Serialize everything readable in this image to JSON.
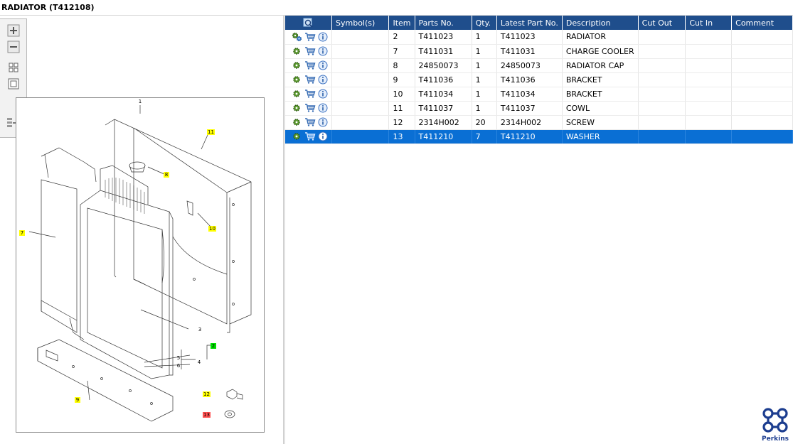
{
  "window": {
    "title": "RADIATOR (T412108)"
  },
  "toolbar": {
    "buttons": [
      {
        "name": "zoom-in-icon"
      },
      {
        "name": "zoom-out-icon"
      },
      {
        "name": "fit-grid-icon"
      },
      {
        "name": "actual-size-icon"
      },
      {
        "name": "export-icon"
      }
    ]
  },
  "diagram": {
    "callouts": [
      {
        "label": "1",
        "style": "p"
      },
      {
        "label": "11",
        "style": "y"
      },
      {
        "label": "8",
        "style": "y"
      },
      {
        "label": "10",
        "style": "y"
      },
      {
        "label": "7",
        "style": "y"
      },
      {
        "label": "3",
        "style": "p"
      },
      {
        "label": "2",
        "style": "g"
      },
      {
        "label": "5",
        "style": "p"
      },
      {
        "label": "4",
        "style": "p"
      },
      {
        "label": "6",
        "style": "p"
      },
      {
        "label": "9",
        "style": "y"
      },
      {
        "label": "12",
        "style": "y"
      },
      {
        "label": "13",
        "style": "r"
      }
    ]
  },
  "grid": {
    "columns": [
      "Symbol(s)",
      "Item",
      "Parts No.",
      "Qty.",
      "Latest Part No.",
      "Description",
      "Cut Out",
      "Cut In",
      "Comment"
    ],
    "rows": [
      {
        "item": "2",
        "part": "T411023",
        "qty": "1",
        "latest": "T411023",
        "desc": "RADIATOR",
        "cutout": "",
        "cutin": "",
        "comment": "",
        "gear": "double"
      },
      {
        "item": "7",
        "part": "T411031",
        "qty": "1",
        "latest": "T411031",
        "desc": "CHARGE COOLER",
        "cutout": "",
        "cutin": "",
        "comment": "",
        "gear": "single"
      },
      {
        "item": "8",
        "part": "24850073",
        "qty": "1",
        "latest": "24850073",
        "desc": "RADIATOR CAP",
        "cutout": "",
        "cutin": "",
        "comment": "",
        "gear": "single"
      },
      {
        "item": "9",
        "part": "T411036",
        "qty": "1",
        "latest": "T411036",
        "desc": "BRACKET",
        "cutout": "",
        "cutin": "",
        "comment": "",
        "gear": "single"
      },
      {
        "item": "10",
        "part": "T411034",
        "qty": "1",
        "latest": "T411034",
        "desc": "BRACKET",
        "cutout": "",
        "cutin": "",
        "comment": "",
        "gear": "single"
      },
      {
        "item": "11",
        "part": "T411037",
        "qty": "1",
        "latest": "T411037",
        "desc": "COWL",
        "cutout": "",
        "cutin": "",
        "comment": "",
        "gear": "single"
      },
      {
        "item": "12",
        "part": "2314H002",
        "qty": "20",
        "latest": "2314H002",
        "desc": "SCREW",
        "cutout": "",
        "cutin": "",
        "comment": "",
        "gear": "single"
      },
      {
        "item": "13",
        "part": "T411210",
        "qty": "7",
        "latest": "T411210",
        "desc": "WASHER",
        "cutout": "",
        "cutin": "",
        "comment": "",
        "gear": "single",
        "selected": true
      }
    ]
  },
  "brand": {
    "name": "Perkins",
    "color": "#1c3d8f"
  },
  "colors": {
    "header": "#1f4e8c",
    "selected": "#0a6fd4"
  }
}
